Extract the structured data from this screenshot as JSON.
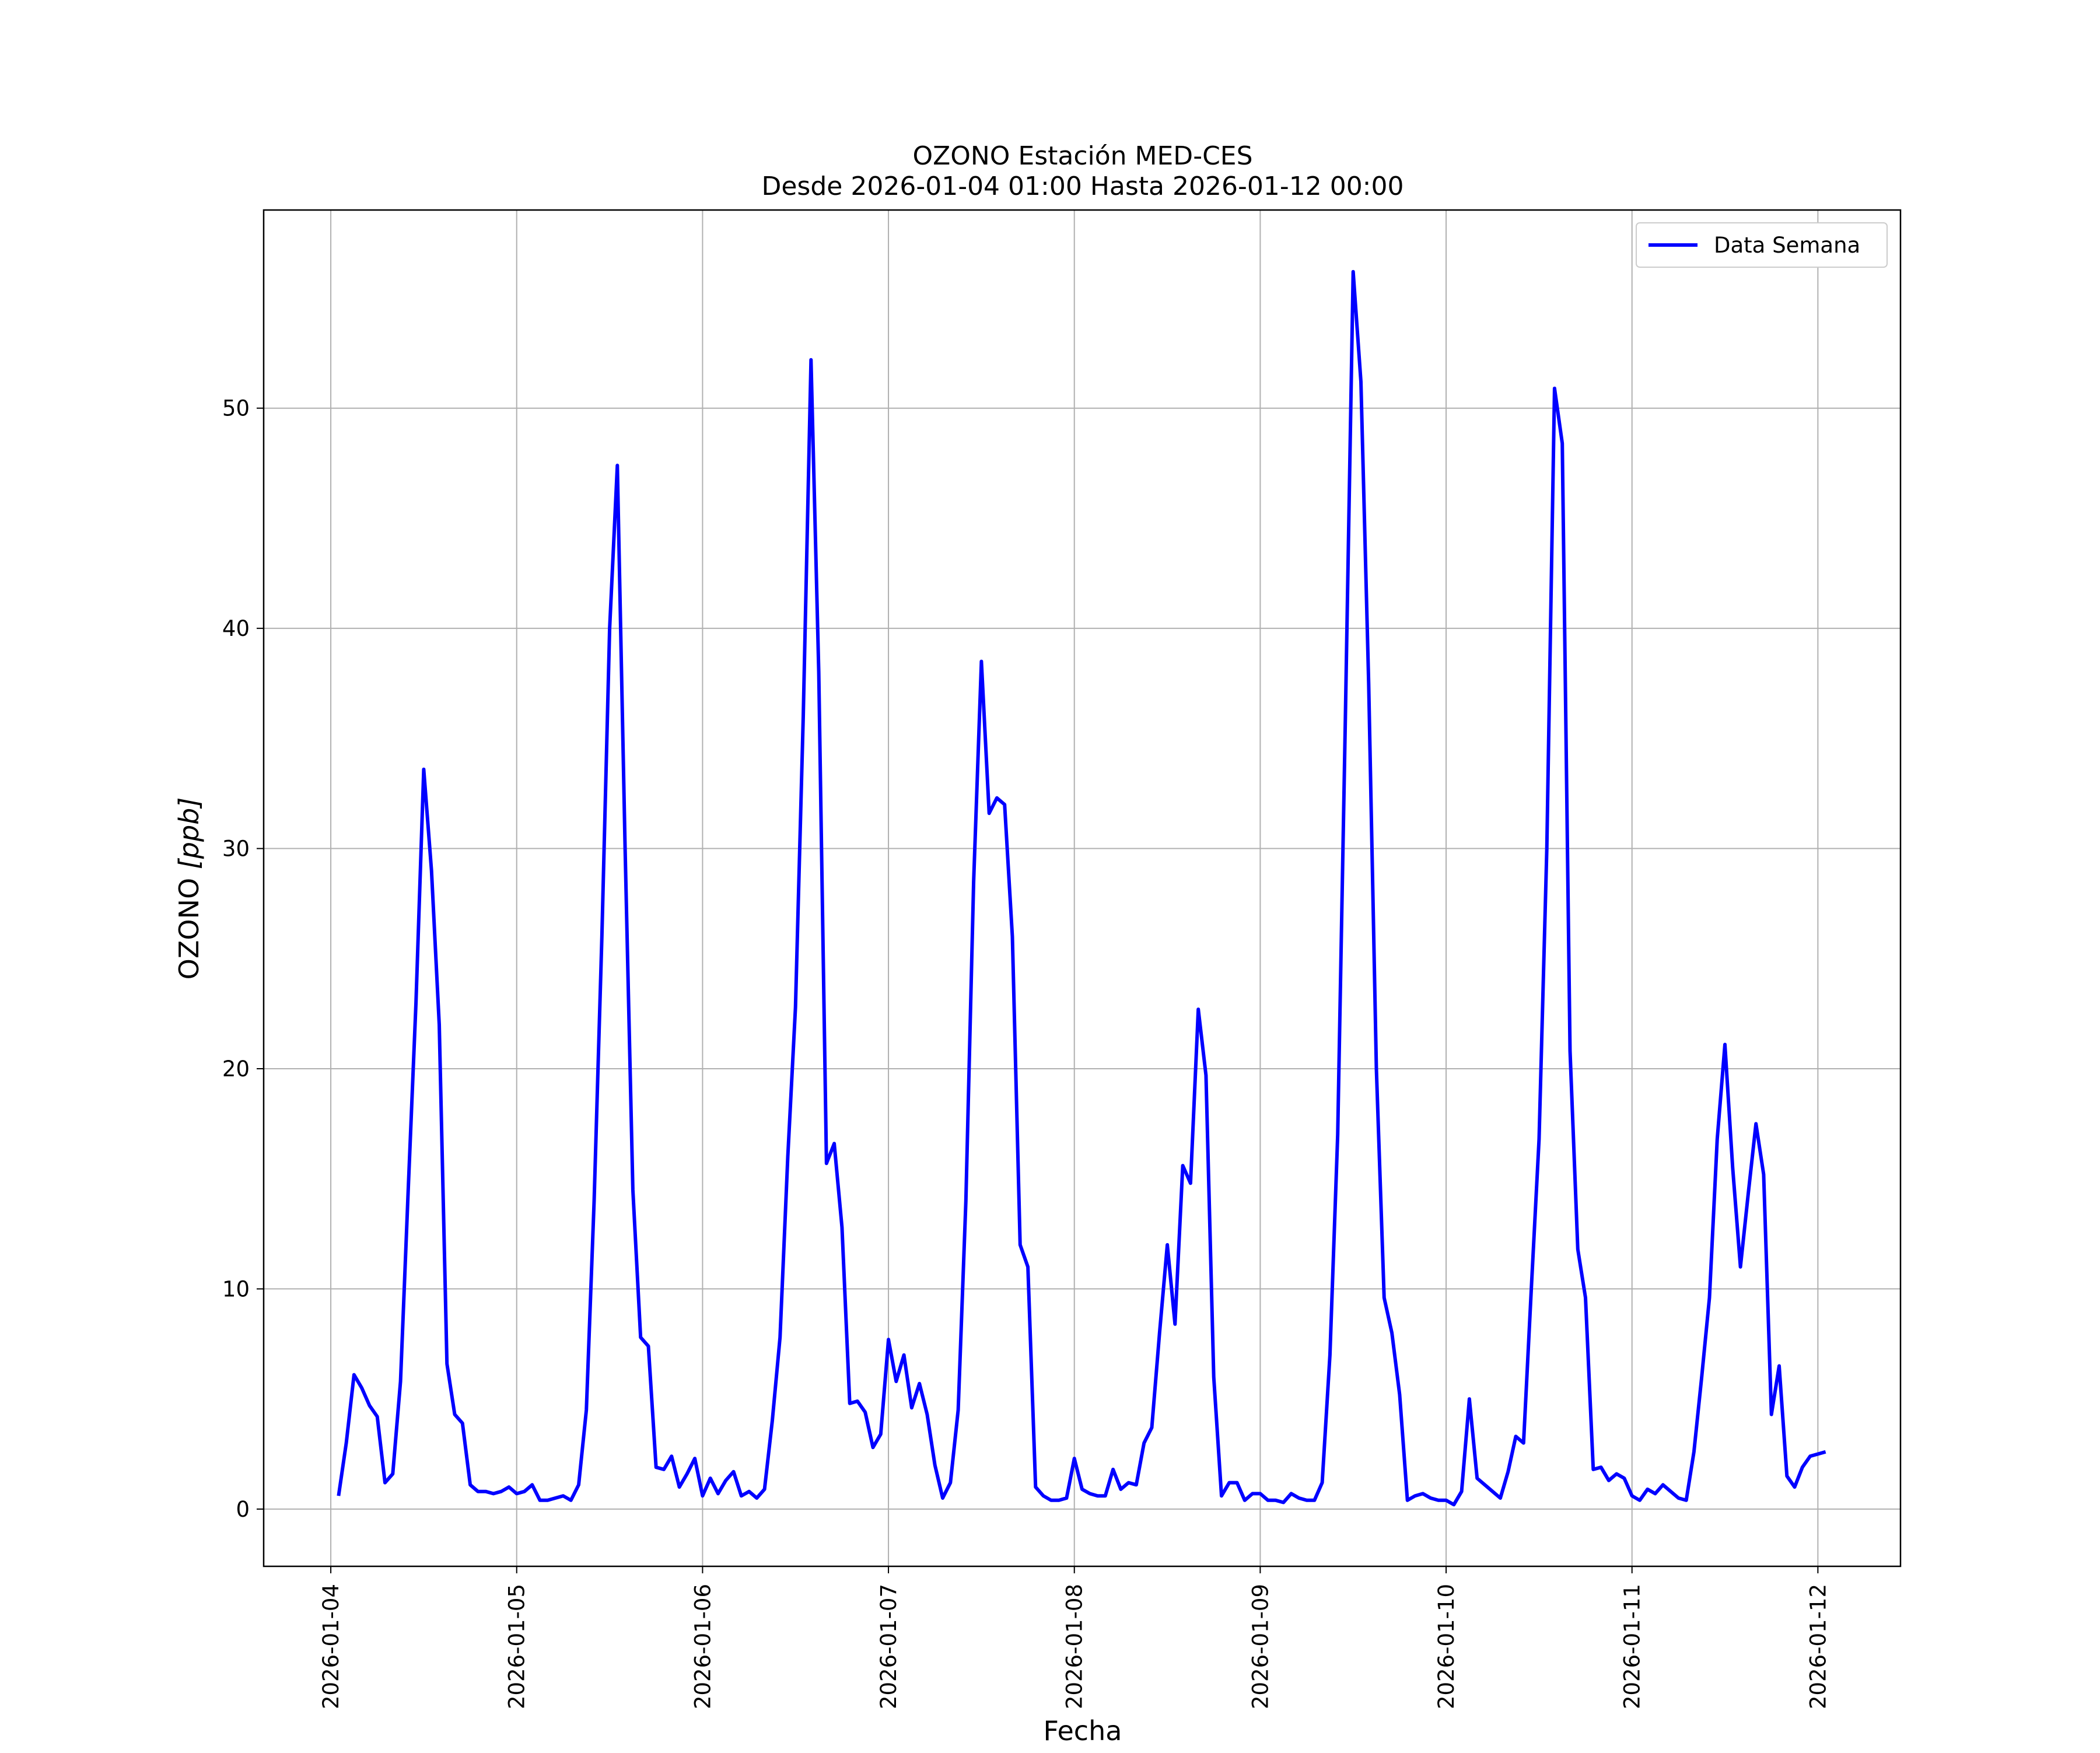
{
  "chart_data": {
    "type": "line",
    "title": "OZONO Estación MED-CES",
    "subtitle": "Desde 2026-01-04 01:00 Hasta 2026-01-12 00:00",
    "xlabel": "Fecha",
    "ylabel_main": "OZONO ",
    "ylabel_unit": "[ppb]",
    "xlim": [
      "2026-01-03 15:20",
      "2026-01-12 10:40"
    ],
    "ylim": [
      -2.6,
      59.0
    ],
    "grid": true,
    "legend_position": "top-right",
    "x_ticks": [
      "2026-01-04",
      "2026-01-05",
      "2026-01-06",
      "2026-01-07",
      "2026-01-08",
      "2026-01-09",
      "2026-01-10",
      "2026-01-11",
      "2026-01-12"
    ],
    "y_ticks": [
      0,
      10,
      20,
      30,
      40,
      50
    ],
    "series": [
      {
        "name": "Data Semana",
        "color": "#0000ff",
        "start": "2026-01-04 01:00",
        "step_hours": 1,
        "values": [
          0.6,
          3.0,
          6.1,
          5.5,
          4.7,
          4.2,
          1.2,
          1.6,
          5.8,
          14.5,
          23.0,
          33.6,
          29.0,
          22.0,
          6.6,
          4.3,
          3.9,
          1.1,
          0.8,
          0.8,
          0.7,
          0.8,
          1.0,
          0.7,
          0.8,
          1.1,
          0.4,
          0.4,
          0.5,
          0.6,
          0.4,
          1.1,
          4.5,
          14.0,
          26.0,
          40.0,
          47.4,
          30.0,
          14.5,
          7.8,
          7.4,
          1.9,
          1.8,
          2.4,
          1.0,
          1.6,
          2.3,
          0.6,
          1.4,
          0.7,
          1.3,
          1.7,
          0.6,
          0.8,
          0.5,
          0.9,
          4.0,
          7.8,
          16.0,
          22.8,
          36.0,
          52.2,
          38.0,
          15.7,
          16.6,
          12.8,
          4.8,
          4.9,
          4.4,
          2.8,
          3.4,
          7.7,
          5.8,
          7.0,
          4.6,
          5.7,
          4.3,
          2.0,
          0.5,
          1.2,
          4.5,
          14.0,
          28.5,
          38.5,
          31.6,
          32.3,
          32.0,
          26.0,
          12.0,
          11.0,
          1.0,
          0.6,
          0.4,
          0.4,
          0.5,
          2.3,
          0.9,
          0.7,
          0.6,
          0.6,
          1.8,
          0.9,
          1.2,
          1.1,
          3.0,
          3.7,
          8.0,
          12.0,
          8.4,
          15.6,
          14.8,
          22.7,
          19.7,
          6.0,
          0.6,
          1.2,
          1.2,
          0.4,
          0.7,
          0.7,
          0.4,
          0.4,
          0.3,
          0.7,
          0.5,
          0.4,
          0.4,
          1.2,
          7.0,
          17.0,
          36.0,
          56.2,
          51.2,
          37.5,
          20.0,
          9.6,
          8.0,
          5.2,
          0.4,
          0.6,
          0.7,
          0.5,
          0.4,
          0.4,
          0.2,
          0.8,
          5.0,
          1.4,
          1.1,
          0.8,
          0.5,
          1.7,
          3.3,
          3.0,
          10.0,
          16.8,
          30.0,
          50.9,
          48.4,
          20.8,
          11.8,
          9.6,
          1.8,
          1.9,
          1.3,
          1.6,
          1.4,
          0.6,
          0.4,
          0.9,
          0.7,
          1.1,
          0.8,
          0.5,
          0.4,
          2.6,
          6.0,
          9.6,
          16.8,
          21.1,
          15.5,
          11.0,
          14.3,
          17.5,
          15.2,
          4.3,
          6.5,
          1.5,
          1.0,
          1.9,
          2.4,
          2.5,
          2.6
        ]
      }
    ]
  }
}
